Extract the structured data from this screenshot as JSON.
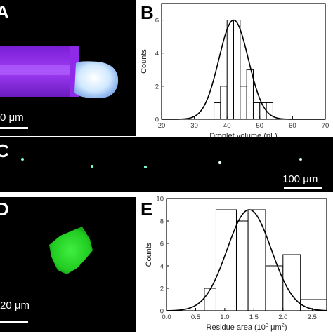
{
  "panels": {
    "a": {
      "letter": "A",
      "scale_text": "0 μm"
    },
    "b": {
      "letter": "B"
    },
    "c": {
      "letter": "C",
      "scale_text": "100 μm"
    },
    "d": {
      "letter": "D",
      "scale_text": "20 μm"
    },
    "e": {
      "letter": "E"
    }
  },
  "colors": {
    "tube": "#8a2be2",
    "droplet": "#e8f4ff",
    "microdroplets": "#7fffd4",
    "residue": "#22cc22",
    "curve": "#000000",
    "bars": "#ffffff"
  },
  "chart_data": [
    {
      "type": "bar",
      "panel": "B",
      "xlabel": "Droplet volume (pL)",
      "ylabel": "Counts",
      "xlim": [
        20,
        70
      ],
      "ylim": [
        0,
        7
      ],
      "xticks": [
        20,
        30,
        40,
        50,
        60,
        70
      ],
      "yticks": [
        0,
        2,
        4,
        6
      ],
      "bins": [
        {
          "x0": 36,
          "x1": 38,
          "value": 1
        },
        {
          "x0": 38,
          "x1": 40,
          "value": 2
        },
        {
          "x0": 40,
          "x1": 42,
          "value": 6
        },
        {
          "x0": 42,
          "x1": 44,
          "value": 6
        },
        {
          "x0": 44,
          "x1": 46,
          "value": 2
        },
        {
          "x0": 46,
          "x1": 48,
          "value": 3
        },
        {
          "x0": 48,
          "x1": 50,
          "value": 1
        },
        {
          "x0": 50,
          "x1": 52,
          "value": 1
        },
        {
          "x0": 52,
          "x1": 54,
          "value": 1
        }
      ],
      "fit": {
        "kind": "gaussian",
        "mean": 42,
        "sd": 4.5,
        "peak": 6
      }
    },
    {
      "type": "bar",
      "panel": "E",
      "xlabel": "Residue area (10",
      "xlabel_sup": "3",
      "xlabel_unit": " μm",
      "xlabel_sup2": "2",
      "xlabel_end": ")",
      "ylabel": "Counts",
      "xlim": [
        0,
        2.75
      ],
      "ylim": [
        0,
        10
      ],
      "xticks": [
        0.0,
        0.5,
        1.0,
        1.5,
        2.0,
        2.5
      ],
      "xtick_labels": [
        "0.0",
        "0.5",
        "1.0",
        "1.5",
        "2.0",
        "2.5"
      ],
      "yticks": [
        0,
        2,
        4,
        6,
        8,
        10
      ],
      "bins": [
        {
          "x0": 0.65,
          "x1": 0.85,
          "value": 2
        },
        {
          "x0": 0.85,
          "x1": 1.2,
          "value": 9
        },
        {
          "x0": 1.2,
          "x1": 1.4,
          "value": 8
        },
        {
          "x0": 1.4,
          "x1": 1.7,
          "value": 9
        },
        {
          "x0": 1.7,
          "x1": 2.0,
          "value": 4
        },
        {
          "x0": 2.0,
          "x1": 2.3,
          "value": 5
        },
        {
          "x0": 2.3,
          "x1": 2.75,
          "value": 1
        }
      ],
      "fit": {
        "kind": "gaussian",
        "mean": 1.42,
        "sd": 0.38,
        "peak": 9
      }
    }
  ]
}
